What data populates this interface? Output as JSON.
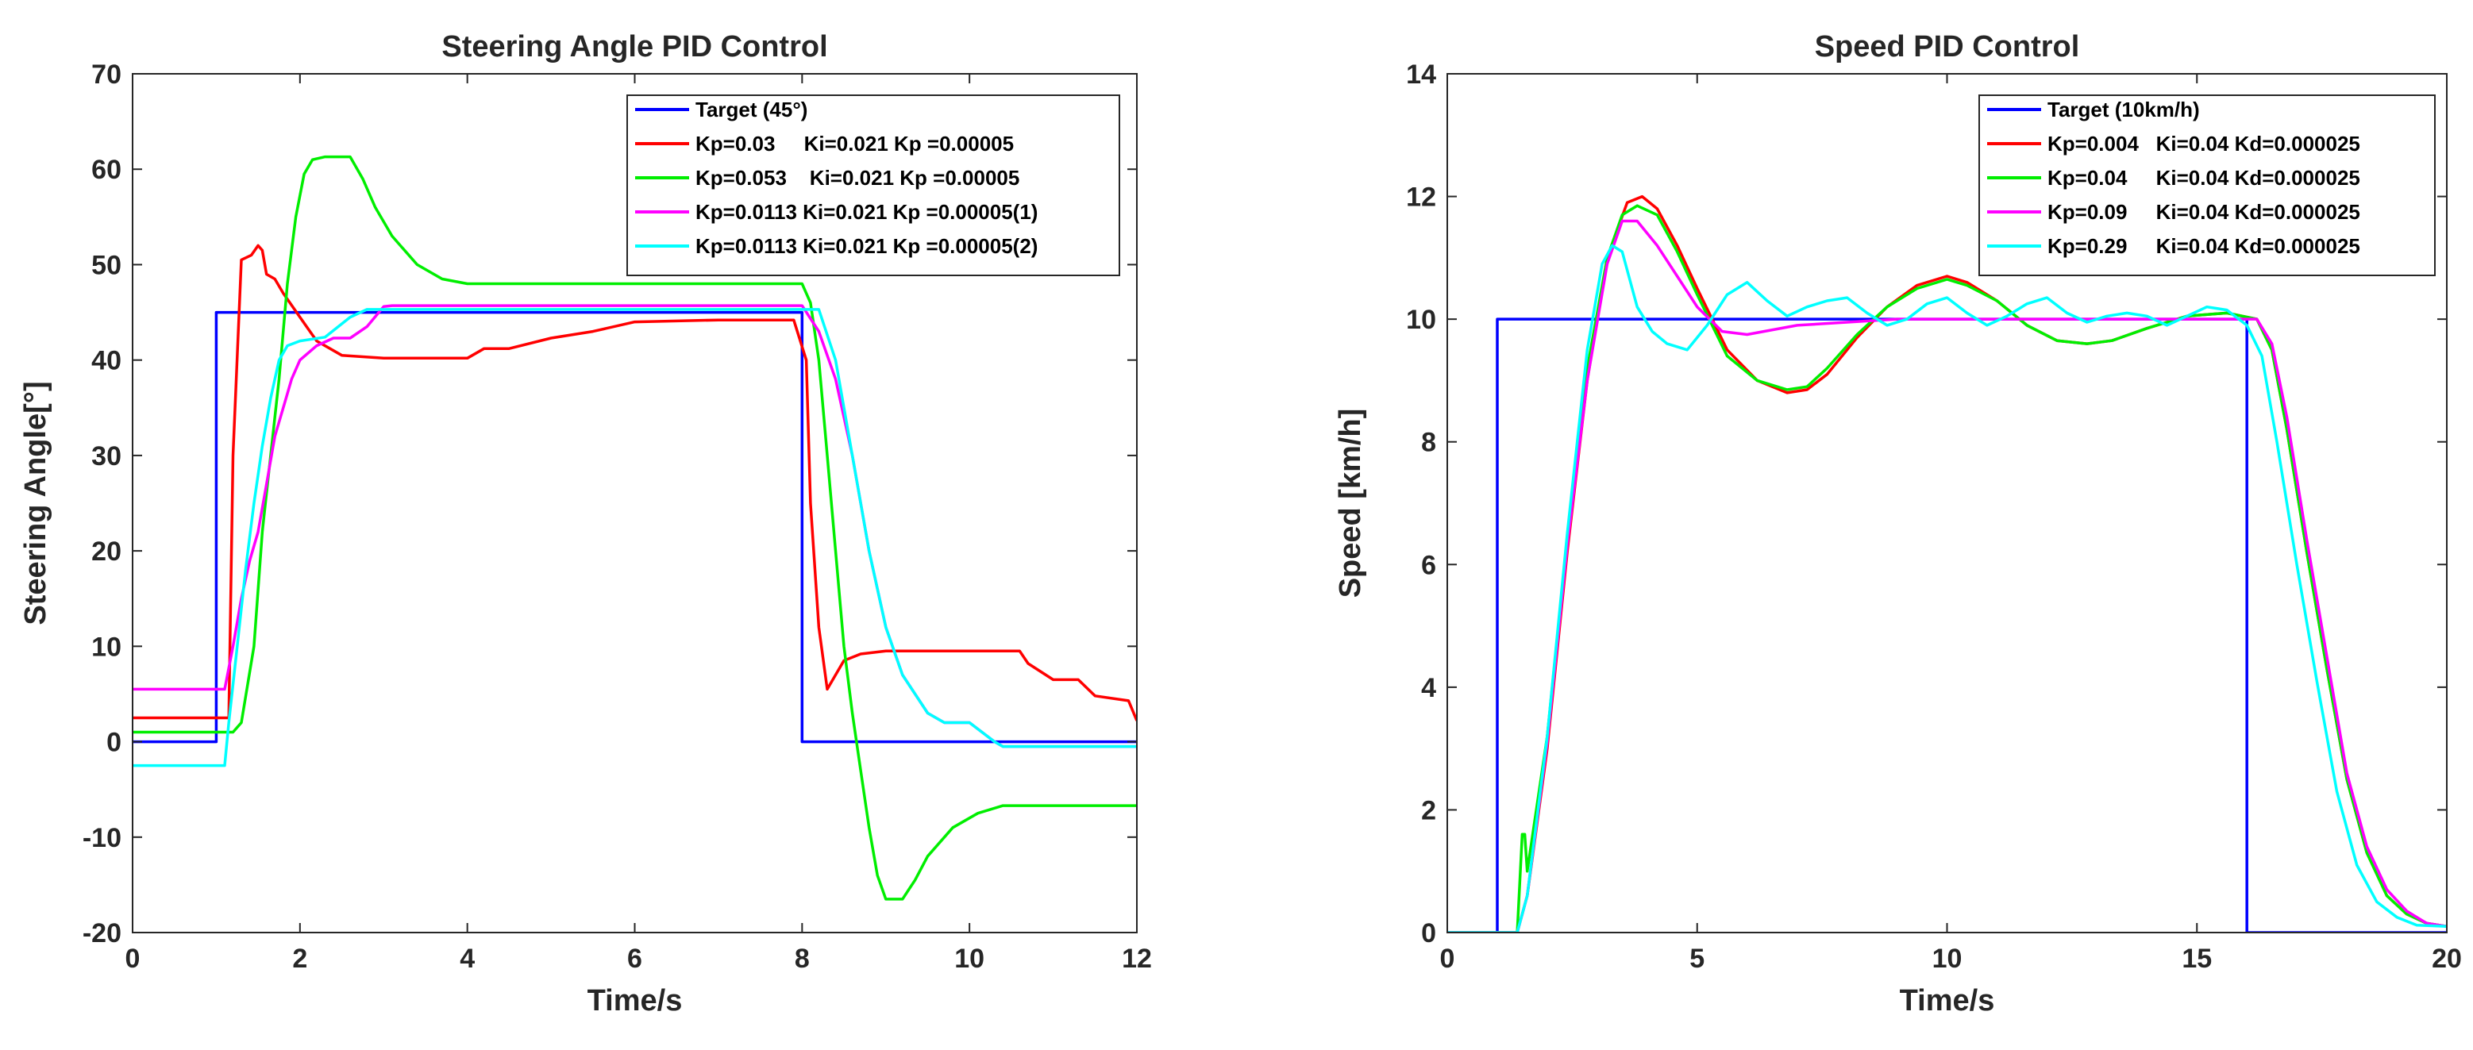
{
  "chart_data": [
    {
      "type": "line",
      "title": "Steering Angle PID Control",
      "xlabel": "Time/s",
      "ylabel": "Steering Angle[°]",
      "xlim": [
        0,
        12
      ],
      "ylim": [
        -20,
        70
      ],
      "xticks": [
        0,
        2,
        4,
        6,
        8,
        10,
        12
      ],
      "yticks": [
        -20,
        -10,
        0,
        10,
        20,
        30,
        40,
        50,
        60,
        70
      ],
      "legend_position": "top-right",
      "series": [
        {
          "name": "Target (45°)",
          "color": "#0000ff",
          "x": [
            0,
            1.0,
            1.0,
            8.0,
            8.0,
            12
          ],
          "y": [
            0,
            0,
            45,
            45,
            0,
            0
          ]
        },
        {
          "name": "Kp=0.03     Ki=0.021 Kp =0.00005",
          "color": "#ff0000",
          "x": [
            0,
            1.15,
            1.2,
            1.3,
            1.42,
            1.5,
            1.55,
            1.6,
            1.7,
            1.8,
            2.0,
            2.2,
            2.5,
            3.0,
            4.0,
            4.2,
            4.5,
            5.0,
            5.5,
            6.0,
            7.0,
            7.9,
            8.05,
            8.1,
            8.2,
            8.3,
            8.4,
            8.5,
            8.7,
            9.0,
            10.0,
            10.6,
            10.7,
            11.0,
            11.3,
            11.5,
            11.9,
            12.0
          ],
          "y": [
            2.5,
            2.5,
            30,
            50.5,
            51,
            52,
            51.5,
            49,
            48.5,
            47,
            44.5,
            42,
            40.5,
            40.2,
            40.2,
            41.2,
            41.2,
            42.3,
            43,
            44,
            44.2,
            44.2,
            40,
            25,
            12,
            5.5,
            7,
            8.5,
            9.2,
            9.5,
            9.5,
            9.5,
            8.2,
            6.5,
            6.5,
            4.8,
            4.3,
            2.2
          ]
        },
        {
          "name": "Kp=0.053    Ki=0.021 Kp =0.00005",
          "color": "#00ee00",
          "x": [
            0,
            1.2,
            1.3,
            1.45,
            1.55,
            1.65,
            1.75,
            1.85,
            1.95,
            2.05,
            2.15,
            2.3,
            2.6,
            2.75,
            2.9,
            3.1,
            3.4,
            3.7,
            4.0,
            5.0,
            7.0,
            8.0,
            8.1,
            8.2,
            8.3,
            8.4,
            8.5,
            8.6,
            8.7,
            8.8,
            8.9,
            9.0,
            9.2,
            9.35,
            9.5,
            9.8,
            10.1,
            10.4,
            12.0
          ],
          "y": [
            1,
            1,
            2,
            10,
            22,
            30,
            38,
            48,
            55,
            59.5,
            61,
            61.3,
            61.3,
            59,
            56,
            53,
            50,
            48.5,
            48,
            48,
            48,
            48,
            46,
            40,
            30,
            20,
            10,
            3,
            -3,
            -9,
            -14,
            -16.5,
            -16.5,
            -14.5,
            -12,
            -9,
            -7.5,
            -6.7,
            -6.7
          ]
        },
        {
          "name": "Kp=0.0113 Ki=0.021 Kp =0.00005(1)",
          "color": "#ff00ff",
          "x": [
            0,
            1.1,
            1.2,
            1.3,
            1.4,
            1.5,
            1.6,
            1.7,
            1.8,
            1.9,
            2.0,
            2.2,
            2.4,
            2.6,
            2.8,
            3.0,
            3.1,
            8.0,
            8.2,
            8.4,
            8.6,
            8.8,
            9.0,
            9.2,
            9.5,
            9.7,
            10.0,
            10.3,
            10.4,
            12.0
          ],
          "y": [
            5.5,
            5.5,
            10,
            15,
            19,
            22,
            27,
            32,
            35,
            38,
            40,
            41.5,
            42.3,
            42.3,
            43.5,
            45.6,
            45.7,
            45.7,
            43,
            38,
            30,
            20,
            12,
            7,
            3,
            2,
            2,
            0,
            -0.5,
            -0.5
          ]
        },
        {
          "name": "Kp=0.0113 Ki=0.021 Kp =0.00005(2)",
          "color": "#00ffff",
          "x": [
            0,
            1.1,
            1.15,
            1.25,
            1.35,
            1.45,
            1.55,
            1.65,
            1.75,
            1.85,
            2.0,
            2.3,
            2.6,
            2.8,
            3.0,
            8.2,
            8.4,
            8.6,
            8.8,
            9.0,
            9.2,
            9.5,
            9.7,
            10.0,
            10.3,
            10.4,
            12.0
          ],
          "y": [
            -2.5,
            -2.5,
            2,
            10,
            18,
            25,
            31,
            36,
            40,
            41.5,
            42,
            42.4,
            44.5,
            45.3,
            45.3,
            45.3,
            40,
            30,
            20,
            12,
            7,
            3,
            2,
            2,
            0,
            -0.5,
            -0.5
          ]
        }
      ]
    },
    {
      "type": "line",
      "title": "Speed PID Control",
      "xlabel": "Time/s",
      "ylabel": "Speed [km/h]",
      "xlim": [
        0,
        20
      ],
      "ylim": [
        0,
        14
      ],
      "xticks": [
        0,
        5,
        10,
        15,
        20
      ],
      "yticks": [
        0,
        2,
        4,
        6,
        8,
        10,
        12,
        14
      ],
      "legend_position": "top-right",
      "series": [
        {
          "name": "Target (10km/h)",
          "color": "#0000ff",
          "x": [
            0,
            1.0,
            1.0,
            16.0,
            16.0,
            20
          ],
          "y": [
            0,
            0,
            10,
            10,
            0,
            0
          ]
        },
        {
          "name": "Kp=0.004   Ki=0.04 Kd=0.000025",
          "color": "#ff0000",
          "x": [
            0,
            1.4,
            1.6,
            2.0,
            2.4,
            2.8,
            3.2,
            3.6,
            3.9,
            4.2,
            4.6,
            5.0,
            5.6,
            6.2,
            6.8,
            7.2,
            7.6,
            8.2,
            8.8,
            9.4,
            10.0,
            10.4,
            11.0,
            11.6,
            12.2,
            12.8,
            13.3,
            14.0,
            14.8,
            15.6,
            16.2,
            16.5,
            16.8,
            17.2,
            17.6,
            18.0,
            18.4,
            18.8,
            19.2,
            19.6,
            20.0
          ],
          "y": [
            0,
            0,
            0.6,
            3.0,
            6.2,
            9.0,
            11.0,
            11.9,
            12.0,
            11.8,
            11.2,
            10.5,
            9.5,
            9.0,
            8.8,
            8.85,
            9.1,
            9.7,
            10.2,
            10.55,
            10.7,
            10.6,
            10.3,
            9.9,
            9.65,
            9.6,
            9.65,
            9.85,
            10.05,
            10.1,
            10.0,
            9.5,
            8.2,
            6.2,
            4.3,
            2.5,
            1.3,
            0.6,
            0.3,
            0.15,
            0.1
          ]
        },
        {
          "name": "Kp=0.04     Ki=0.04 Kd=0.000025",
          "color": "#00ee00",
          "x": [
            0,
            1.4,
            1.5,
            1.55,
            1.6,
            2.0,
            2.4,
            2.8,
            3.2,
            3.5,
            3.8,
            4.2,
            4.6,
            5.0,
            5.6,
            6.2,
            6.8,
            7.2,
            7.6,
            8.2,
            8.8,
            9.4,
            10.0,
            10.4,
            11.0,
            11.6,
            12.2,
            12.8,
            13.3,
            14.0,
            14.8,
            15.6,
            16.2,
            16.5,
            16.8,
            17.2,
            17.6,
            18.0,
            18.4,
            18.8,
            19.2,
            19.6,
            20.0
          ],
          "y": [
            0,
            0,
            1.6,
            1.6,
            1.0,
            3.2,
            6.4,
            9.2,
            11.0,
            11.7,
            11.85,
            11.7,
            11.1,
            10.4,
            9.4,
            9.0,
            8.85,
            8.9,
            9.2,
            9.75,
            10.2,
            10.5,
            10.65,
            10.55,
            10.3,
            9.9,
            9.65,
            9.6,
            9.65,
            9.85,
            10.05,
            10.1,
            10.0,
            9.5,
            8.2,
            6.2,
            4.3,
            2.5,
            1.3,
            0.6,
            0.3,
            0.15,
            0.1
          ]
        },
        {
          "name": "Kp=0.09     Ki=0.04 Kd=0.000025",
          "color": "#ff00ff",
          "x": [
            0,
            1.4,
            1.6,
            2.0,
            2.4,
            2.8,
            3.2,
            3.5,
            3.8,
            4.2,
            4.6,
            5.0,
            5.5,
            6.0,
            7.0,
            8.0,
            9.0,
            16.2,
            16.5,
            16.8,
            17.2,
            17.6,
            18.0,
            18.4,
            18.8,
            19.2,
            19.6,
            20.0
          ],
          "y": [
            0,
            0,
            0.6,
            3.1,
            6.3,
            9.0,
            10.9,
            11.6,
            11.6,
            11.2,
            10.7,
            10.2,
            9.8,
            9.75,
            9.9,
            9.95,
            10.0,
            10.0,
            9.6,
            8.4,
            6.4,
            4.5,
            2.6,
            1.4,
            0.7,
            0.35,
            0.15,
            0.1
          ]
        },
        {
          "name": "Kp=0.29     Ki=0.04 Kd=0.000025",
          "color": "#00ffff",
          "x": [
            0,
            1.4,
            1.6,
            2.0,
            2.4,
            2.8,
            3.1,
            3.3,
            3.5,
            3.8,
            4.1,
            4.4,
            4.8,
            5.2,
            5.6,
            6.0,
            6.4,
            6.8,
            7.2,
            7.6,
            8.0,
            8.4,
            8.8,
            9.2,
            9.6,
            10.0,
            10.4,
            10.8,
            11.2,
            11.6,
            12.0,
            12.4,
            12.8,
            13.2,
            13.6,
            14.0,
            14.4,
            14.8,
            15.2,
            15.6,
            16.0,
            16.3,
            16.6,
            17.0,
            17.4,
            17.8,
            18.2,
            18.6,
            19.0,
            19.4,
            20.0
          ],
          "y": [
            0,
            0,
            0.6,
            3.2,
            6.5,
            9.5,
            10.9,
            11.2,
            11.1,
            10.2,
            9.8,
            9.6,
            9.5,
            9.9,
            10.4,
            10.6,
            10.3,
            10.05,
            10.2,
            10.3,
            10.35,
            10.1,
            9.9,
            10.0,
            10.25,
            10.35,
            10.1,
            9.9,
            10.05,
            10.25,
            10.35,
            10.1,
            9.95,
            10.05,
            10.1,
            10.05,
            9.9,
            10.05,
            10.2,
            10.15,
            9.9,
            9.4,
            8.0,
            6.0,
            4.1,
            2.3,
            1.1,
            0.5,
            0.25,
            0.12,
            0.1
          ]
        }
      ]
    }
  ]
}
